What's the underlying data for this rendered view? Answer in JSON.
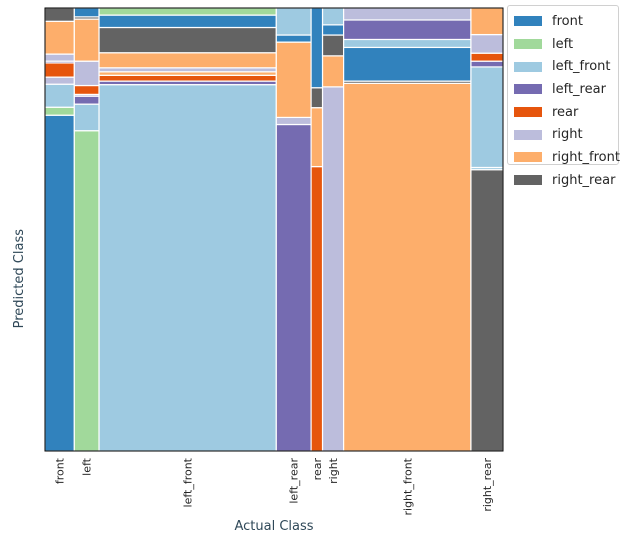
{
  "chart_data": {
    "type": "mosaic",
    "xlabel": "Actual Class",
    "ylabel": "Predicted Class",
    "classes": [
      "front",
      "left",
      "left_front",
      "left_rear",
      "rear",
      "right",
      "right_front",
      "right_rear"
    ],
    "colors": {
      "front": "#3182bd",
      "left": "#a1d99b",
      "left_front": "#9ecae1",
      "left_rear": "#756bb1",
      "rear": "#e6550d",
      "right": "#bcbddc",
      "right_front": "#fdae6b",
      "right_rear": "#636363"
    },
    "actual_classes": [
      {
        "name": "front",
        "width_share": 0.064,
        "predicted": [
          {
            "class": "front",
            "share": 0.758
          },
          {
            "class": "left",
            "share": 0.018
          },
          {
            "class": "left_front",
            "share": 0.052
          },
          {
            "class": "right",
            "share": 0.016
          },
          {
            "class": "rear",
            "share": 0.032
          },
          {
            "class": "left_rear",
            "share": 0.004
          },
          {
            "class": "right",
            "share": 0.016
          },
          {
            "class": "right_front",
            "share": 0.074
          },
          {
            "class": "right_rear",
            "share": 0.03
          }
        ]
      },
      {
        "name": "left",
        "width_share": 0.054,
        "predicted": [
          {
            "class": "left",
            "share": 0.723
          },
          {
            "class": "left_front",
            "share": 0.06
          },
          {
            "class": "left_rear",
            "share": 0.018
          },
          {
            "class": "right",
            "share": 0.004
          },
          {
            "class": "rear",
            "share": 0.02
          },
          {
            "class": "right",
            "share": 0.055
          },
          {
            "class": "right_front",
            "share": 0.095
          },
          {
            "class": "right_rear",
            "share": 0.005
          },
          {
            "class": "front",
            "share": 0.02
          }
        ]
      },
      {
        "name": "left_front",
        "width_share": 0.387,
        "predicted": [
          {
            "class": "left_front",
            "share": 0.827
          },
          {
            "class": "left_rear",
            "share": 0.008
          },
          {
            "class": "rear",
            "share": 0.013
          },
          {
            "class": "right_front",
            "share": 0.008
          },
          {
            "class": "right",
            "share": 0.009
          },
          {
            "class": "right_front",
            "share": 0.034
          },
          {
            "class": "right_rear",
            "share": 0.057
          },
          {
            "class": "front",
            "share": 0.028
          },
          {
            "class": "left",
            "share": 0.016
          }
        ]
      },
      {
        "name": "left_rear",
        "width_share": 0.076,
        "predicted": [
          {
            "class": "left_rear",
            "share": 0.737
          },
          {
            "class": "right",
            "share": 0.016
          },
          {
            "class": "right_front",
            "share": 0.17
          },
          {
            "class": "front",
            "share": 0.016
          },
          {
            "class": "left_front",
            "share": 0.061
          }
        ]
      },
      {
        "name": "rear",
        "width_share": 0.025,
        "predicted": [
          {
            "class": "rear",
            "share": 0.642
          },
          {
            "class": "right_front",
            "share": 0.133
          },
          {
            "class": "right_rear",
            "share": 0.045
          },
          {
            "class": "front",
            "share": 0.18
          }
        ]
      },
      {
        "name": "right",
        "width_share": 0.046,
        "predicted": [
          {
            "class": "right",
            "share": 0.822
          },
          {
            "class": "right_front",
            "share": 0.07
          },
          {
            "class": "right_rear",
            "share": 0.047
          },
          {
            "class": "front",
            "share": 0.023
          },
          {
            "class": "left_front",
            "share": 0.038
          }
        ]
      },
      {
        "name": "right_front",
        "width_share": 0.278,
        "predicted": [
          {
            "class": "right_front",
            "share": 0.83
          },
          {
            "class": "right_rear",
            "share": 0.005
          },
          {
            "class": "front",
            "share": 0.076
          },
          {
            "class": "left_front",
            "share": 0.018
          },
          {
            "class": "left_rear",
            "share": 0.044
          },
          {
            "class": "right",
            "share": 0.027
          }
        ]
      },
      {
        "name": "right_rear",
        "width_share": 0.07,
        "predicted": [
          {
            "class": "right_rear",
            "share": 0.635
          },
          {
            "class": "left_front",
            "share": 0.005
          },
          {
            "class": "left_front",
            "share": 0.227
          },
          {
            "class": "left_rear",
            "share": 0.013
          },
          {
            "class": "rear",
            "share": 0.018
          },
          {
            "class": "right",
            "share": 0.042
          },
          {
            "class": "right_front",
            "share": 0.06
          }
        ]
      }
    ],
    "legend": [
      "front",
      "left",
      "left_front",
      "left_rear",
      "rear",
      "right",
      "right_front",
      "right_rear"
    ],
    "legend_position": "top-right"
  }
}
